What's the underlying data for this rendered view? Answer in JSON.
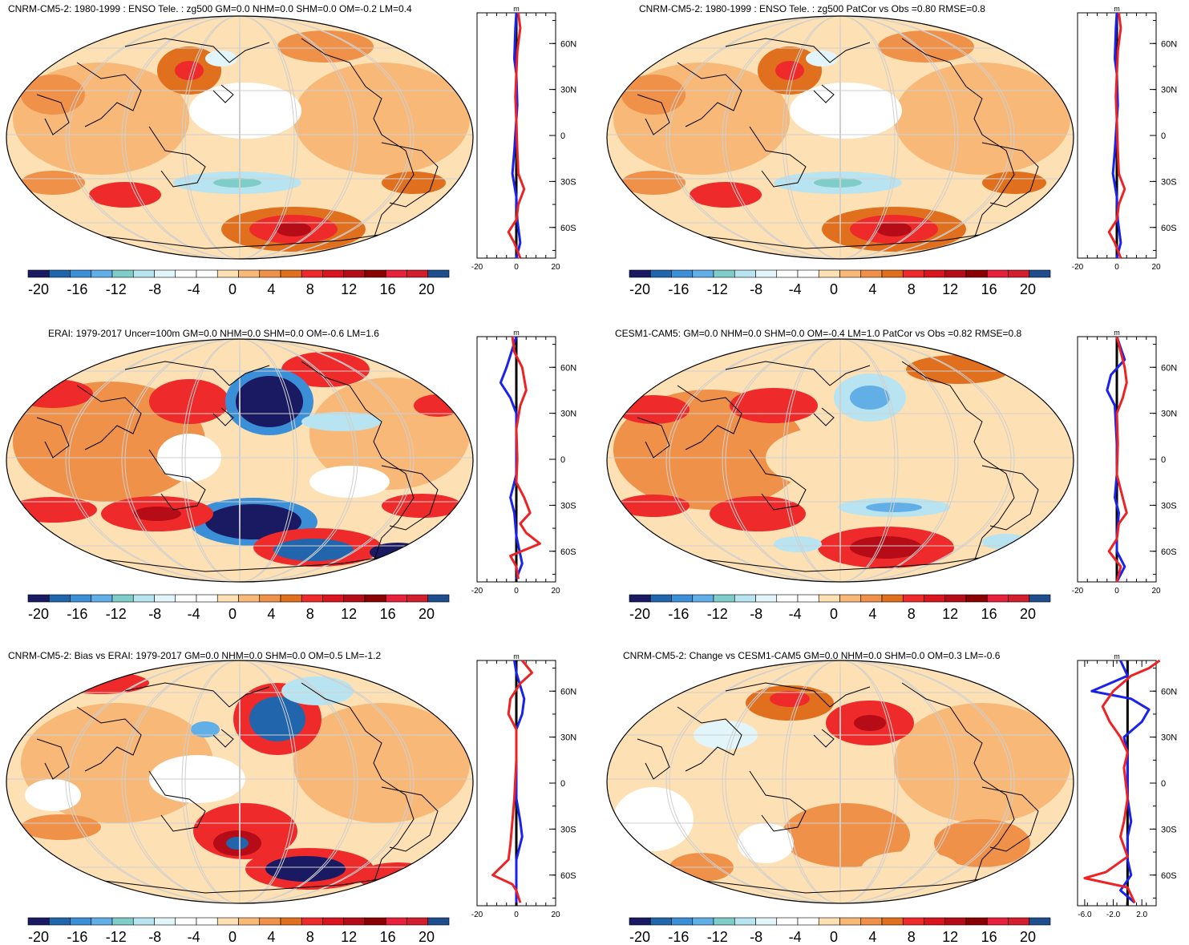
{
  "panels": [
    {
      "id": "p1",
      "title": "CNRM-CM5-2: 1980-1999 : ENSO Tele. : zg500 GM=0.0 NHM=0.0 SHM=0.0 OM=-0.2 LM=0.4",
      "profile_unit": "m",
      "profile_x_ticks": [
        "-20",
        "0",
        "20"
      ],
      "lat_ticks": [
        "60N",
        "30N",
        "0",
        "30S",
        "60S"
      ],
      "colorbar_labels": [
        "-20",
        "-16",
        "-12",
        "-8",
        "-4",
        "0",
        "4",
        "8",
        "12",
        "16",
        "20"
      ],
      "profile_red": [
        [
          1,
          80
        ],
        [
          2,
          70
        ],
        [
          0.5,
          55
        ],
        [
          0,
          40
        ],
        [
          -0.5,
          25
        ],
        [
          0,
          10
        ],
        [
          0.5,
          -10
        ],
        [
          1,
          -25
        ],
        [
          4,
          -35
        ],
        [
          1,
          -45
        ],
        [
          0,
          -55
        ],
        [
          -4,
          -63
        ],
        [
          -1,
          -70
        ],
        [
          2,
          -80
        ]
      ],
      "profile_blue": [
        [
          0,
          80
        ],
        [
          -0.5,
          70
        ],
        [
          -1,
          50
        ],
        [
          0,
          40
        ],
        [
          0.5,
          20
        ],
        [
          -1,
          -10
        ],
        [
          -2,
          -25
        ],
        [
          0,
          -40
        ],
        [
          0.5,
          -55
        ],
        [
          2,
          -70
        ],
        [
          0,
          -80
        ]
      ]
    },
    {
      "id": "p2",
      "title": "CNRM-CM5-2: 1980-1999 : ENSO Tele. : zg500 PatCor vs Obs =0.80 RMSE=0.8",
      "profile_unit": "m",
      "profile_x_ticks": [
        "-20",
        "0",
        "20"
      ],
      "lat_ticks": [
        "60N",
        "30N",
        "0",
        "30S",
        "60S"
      ],
      "colorbar_labels": [
        "-20",
        "-16",
        "-12",
        "-8",
        "-4",
        "0",
        "4",
        "8",
        "12",
        "16",
        "20"
      ],
      "profile_red": [
        [
          1,
          80
        ],
        [
          2,
          70
        ],
        [
          0.5,
          55
        ],
        [
          0,
          40
        ],
        [
          -0.5,
          25
        ],
        [
          0,
          10
        ],
        [
          0.5,
          -10
        ],
        [
          1,
          -25
        ],
        [
          4,
          -35
        ],
        [
          1,
          -45
        ],
        [
          0,
          -55
        ],
        [
          -4,
          -63
        ],
        [
          -1,
          -70
        ],
        [
          2,
          -80
        ]
      ],
      "profile_blue": [
        [
          0,
          80
        ],
        [
          -0.5,
          70
        ],
        [
          -1,
          50
        ],
        [
          0,
          40
        ],
        [
          0.5,
          20
        ],
        [
          -1,
          -10
        ],
        [
          -2,
          -25
        ],
        [
          0,
          -40
        ],
        [
          0.5,
          -55
        ],
        [
          2,
          -70
        ],
        [
          0,
          -80
        ]
      ]
    },
    {
      "id": "p3",
      "title": "ERAI: 1979-2017 Uncer=100m GM=0.0 NHM=0.0 SHM=0.0 OM=-0.6 LM=1.6",
      "profile_unit": "m",
      "profile_x_ticks": [
        "-20",
        "0",
        "20"
      ],
      "lat_ticks": [
        "60N",
        "30N",
        "0",
        "30S",
        "60S"
      ],
      "colorbar_labels": [
        "-20",
        "-16",
        "-12",
        "-8",
        "-4",
        "0",
        "4",
        "8",
        "12",
        "16",
        "20"
      ],
      "profile_red": [
        [
          -2,
          80
        ],
        [
          -1,
          70
        ],
        [
          3,
          60
        ],
        [
          5,
          45
        ],
        [
          2,
          35
        ],
        [
          0,
          20
        ],
        [
          0.5,
          0
        ],
        [
          0,
          -15
        ],
        [
          4,
          -25
        ],
        [
          7,
          -35
        ],
        [
          2,
          -42
        ],
        [
          5,
          -48
        ],
        [
          12,
          -55
        ],
        [
          -3,
          -63
        ],
        [
          0,
          -70
        ],
        [
          1,
          -78
        ]
      ],
      "profile_blue": [
        [
          0,
          80
        ],
        [
          -5,
          60
        ],
        [
          -8,
          50
        ],
        [
          -3,
          40
        ],
        [
          0,
          30
        ],
        [
          0,
          10
        ],
        [
          0,
          -10
        ],
        [
          -3,
          -25
        ],
        [
          -1,
          -35
        ],
        [
          0,
          -50
        ],
        [
          3,
          -68
        ],
        [
          0,
          -78
        ]
      ]
    },
    {
      "id": "p4",
      "title": "CESM1-CAM5: GM=0.0 NHM=0.0 SHM=0.0 OM=-0.4 LM=1.0 PatCor vs Obs =0.82 RMSE=0.8",
      "profile_unit": "m",
      "profile_x_ticks": [
        "-20",
        "0",
        "20"
      ],
      "lat_ticks": [
        "60N",
        "30N",
        "0",
        "30S",
        "60S"
      ],
      "colorbar_labels": [
        "-20",
        "-16",
        "-12",
        "-8",
        "-4",
        "0",
        "4",
        "8",
        "12",
        "16",
        "20"
      ],
      "profile_red": [
        [
          0,
          80
        ],
        [
          2,
          70
        ],
        [
          4,
          60
        ],
        [
          5,
          50
        ],
        [
          3,
          40
        ],
        [
          0,
          30
        ],
        [
          0.5,
          10
        ],
        [
          0,
          -10
        ],
        [
          3,
          -25
        ],
        [
          5,
          -35
        ],
        [
          1,
          -42
        ],
        [
          0,
          -52
        ],
        [
          -4,
          -60
        ],
        [
          2,
          -70
        ],
        [
          0,
          -80
        ]
      ],
      "profile_blue": [
        [
          0,
          80
        ],
        [
          4,
          65
        ],
        [
          -3,
          55
        ],
        [
          -5,
          45
        ],
        [
          -1,
          35
        ],
        [
          0,
          10
        ],
        [
          0,
          -10
        ],
        [
          -1,
          -25
        ],
        [
          1,
          -35
        ],
        [
          0,
          -50
        ],
        [
          0,
          -60
        ],
        [
          4,
          -70
        ],
        [
          0,
          -80
        ]
      ]
    },
    {
      "id": "p5",
      "title": "CNRM-CM5-2: Bias vs ERAI: 1979-2017 GM=0.0 NHM=0.0 SHM=0.0 OM=0.5 LM=-1.2",
      "profile_unit": "m",
      "profile_x_ticks": [
        "-20",
        "0",
        "20"
      ],
      "lat_ticks": [
        "60N",
        "30N",
        "0",
        "30S",
        "60S"
      ],
      "colorbar_labels": [
        "-20",
        "-16",
        "-12",
        "-8",
        "-4",
        "0",
        "4",
        "8",
        "12",
        "16",
        "20"
      ],
      "profile_red": [
        [
          3,
          80
        ],
        [
          8,
          72
        ],
        [
          2,
          65
        ],
        [
          -3,
          55
        ],
        [
          -4,
          45
        ],
        [
          0,
          35
        ],
        [
          0,
          15
        ],
        [
          -1,
          -10
        ],
        [
          -2,
          -25
        ],
        [
          -3,
          -40
        ],
        [
          -4,
          -50
        ],
        [
          -12,
          -60
        ],
        [
          -2,
          -66
        ],
        [
          0,
          -70
        ],
        [
          2,
          -78
        ]
      ],
      "profile_blue": [
        [
          -1,
          80
        ],
        [
          0,
          72
        ],
        [
          4,
          55
        ],
        [
          3,
          45
        ],
        [
          0,
          35
        ],
        [
          0,
          10
        ],
        [
          0,
          -10
        ],
        [
          2,
          -25
        ],
        [
          3,
          -35
        ],
        [
          0,
          -50
        ],
        [
          0,
          -65
        ],
        [
          0,
          -78
        ]
      ]
    },
    {
      "id": "p6",
      "title": "CNRM-CM5-2: Change vs CESM1-CAM5 GM=0.0 NHM=0.0 SHM=0.0 OM=0.3 LM=-0.6",
      "profile_unit": "m",
      "profile_x_ticks": [
        "-6.0",
        "-2.0",
        "2.0"
      ],
      "lat_ticks": [
        "60N",
        "30N",
        "0",
        "30S",
        "60S"
      ],
      "colorbar_labels": [
        "-20",
        "-16",
        "-12",
        "-8",
        "-4",
        "0",
        "4",
        "8",
        "12",
        "16",
        "20"
      ],
      "profile_red": [
        [
          4.5,
          80
        ],
        [
          3,
          75
        ],
        [
          0.5,
          70
        ],
        [
          -2,
          60
        ],
        [
          -3.5,
          50
        ],
        [
          -2.5,
          40
        ],
        [
          -1,
          30
        ],
        [
          0,
          20
        ],
        [
          -0.5,
          10
        ],
        [
          0,
          -10
        ],
        [
          -0.5,
          -25
        ],
        [
          -1,
          -35
        ],
        [
          0,
          -48
        ],
        [
          -3,
          -58
        ],
        [
          -6,
          -62
        ],
        [
          0,
          -68
        ],
        [
          1,
          -78
        ]
      ],
      "profile_blue": [
        [
          -1,
          80
        ],
        [
          0,
          70
        ],
        [
          -5,
          60
        ],
        [
          0.5,
          55
        ],
        [
          3,
          48
        ],
        [
          2,
          40
        ],
        [
          -0.5,
          30
        ],
        [
          0,
          20
        ],
        [
          0,
          10
        ],
        [
          0,
          -10
        ],
        [
          0.5,
          -25
        ],
        [
          0,
          -35
        ],
        [
          0,
          -50
        ],
        [
          0.5,
          -60
        ],
        [
          -1,
          -70
        ],
        [
          1,
          -78
        ]
      ]
    }
  ],
  "colorbar_colors": [
    "#1a1a63",
    "#2166ac",
    "#3a8fd6",
    "#62aee6",
    "#7fcdc8",
    "#b7e4f0",
    "#e2f5fb",
    "#ffffff",
    "#ffffff",
    "#fde0b4",
    "#f7b878",
    "#f0914a",
    "#e0701e",
    "#ef2a2a",
    "#d9141e",
    "#b50c17",
    "#8a0000",
    "#e8203c",
    "#d31e2e",
    "#1f4e8f"
  ],
  "style": {
    "red": "#ee2222",
    "blue": "#1a22ee",
    "land_line": "#000000",
    "grid": "#cfcfcf"
  }
}
